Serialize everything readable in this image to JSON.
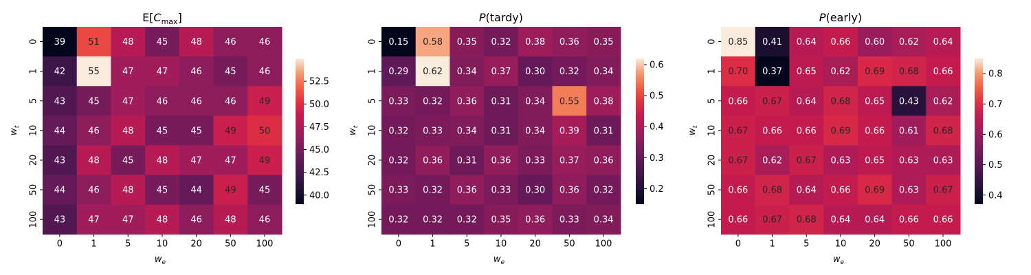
{
  "chart_data": [
    {
      "type": "heatmap",
      "title_main": "E[",
      "title_var": "C",
      "title_sub": "max",
      "title_end": "]",
      "x_categories": [
        "0",
        "1",
        "5",
        "10",
        "20",
        "50",
        "100"
      ],
      "y_categories": [
        "0",
        "1",
        "5",
        "10",
        "20",
        "50",
        "100"
      ],
      "xlabel_var": "w",
      "xlabel_sub": "e",
      "ylabel_var": "w",
      "ylabel_sub": "t",
      "values": [
        [
          39,
          51,
          48,
          45,
          48,
          46,
          46
        ],
        [
          42,
          55,
          47,
          47,
          46,
          45,
          46
        ],
        [
          43,
          45,
          47,
          46,
          46,
          46,
          49
        ],
        [
          44,
          46,
          48,
          45,
          45,
          49,
          50
        ],
        [
          43,
          48,
          45,
          48,
          47,
          47,
          49
        ],
        [
          44,
          46,
          48,
          45,
          44,
          49,
          45
        ],
        [
          43,
          47,
          47,
          48,
          46,
          48,
          46
        ]
      ],
      "colorbar": {
        "range": [
          39,
          55
        ],
        "ticks": [
          40.0,
          42.5,
          45.0,
          47.5,
          50.0,
          52.5
        ],
        "tick_labels": [
          "40.0",
          "42.5",
          "45.0",
          "47.5",
          "50.0",
          "52.5"
        ]
      },
      "colormap": "rocket"
    },
    {
      "type": "heatmap",
      "title_var": "P",
      "title_rest": "(tardy)",
      "x_categories": [
        "0",
        "1",
        "5",
        "10",
        "20",
        "50",
        "100"
      ],
      "y_categories": [
        "0",
        "1",
        "5",
        "10",
        "20",
        "50",
        "100"
      ],
      "xlabel_var": "w",
      "xlabel_sub": "e",
      "ylabel_var": "w",
      "ylabel_sub": "t",
      "values": [
        [
          0.15,
          0.58,
          0.35,
          0.32,
          0.38,
          0.36,
          0.35
        ],
        [
          0.29,
          0.62,
          0.34,
          0.37,
          0.3,
          0.32,
          0.34
        ],
        [
          0.33,
          0.32,
          0.36,
          0.31,
          0.34,
          0.55,
          0.38
        ],
        [
          0.32,
          0.33,
          0.34,
          0.31,
          0.34,
          0.39,
          0.31
        ],
        [
          0.32,
          0.36,
          0.31,
          0.36,
          0.33,
          0.37,
          0.36
        ],
        [
          0.33,
          0.32,
          0.36,
          0.33,
          0.3,
          0.36,
          0.32
        ],
        [
          0.32,
          0.32,
          0.32,
          0.35,
          0.36,
          0.33,
          0.34
        ]
      ],
      "colorbar": {
        "range": [
          0.15,
          0.62
        ],
        "ticks": [
          0.2,
          0.3,
          0.4,
          0.5,
          0.6
        ],
        "tick_labels": [
          "0.2",
          "0.3",
          "0.4",
          "0.5",
          "0.6"
        ]
      },
      "colormap": "rocket"
    },
    {
      "type": "heatmap",
      "title_var": "P",
      "title_rest": "(early)",
      "x_categories": [
        "0",
        "1",
        "5",
        "10",
        "20",
        "50",
        "100"
      ],
      "y_categories": [
        "0",
        "1",
        "5",
        "10",
        "20",
        "50",
        "100"
      ],
      "xlabel_var": "w",
      "xlabel_sub": "e",
      "ylabel_var": "w",
      "ylabel_sub": "t",
      "values": [
        [
          0.85,
          0.41,
          0.64,
          0.66,
          0.6,
          0.62,
          0.64
        ],
        [
          0.7,
          0.37,
          0.65,
          0.62,
          0.69,
          0.68,
          0.66
        ],
        [
          0.66,
          0.67,
          0.64,
          0.68,
          0.65,
          0.43,
          0.62
        ],
        [
          0.67,
          0.66,
          0.66,
          0.69,
          0.66,
          0.61,
          0.68
        ],
        [
          0.67,
          0.62,
          0.67,
          0.63,
          0.65,
          0.63,
          0.63
        ],
        [
          0.66,
          0.68,
          0.64,
          0.66,
          0.69,
          0.63,
          0.67
        ],
        [
          0.66,
          0.67,
          0.68,
          0.64,
          0.64,
          0.66,
          0.66
        ]
      ],
      "colorbar": {
        "range": [
          0.37,
          0.85
        ],
        "ticks": [
          0.4,
          0.5,
          0.6,
          0.7,
          0.8
        ],
        "tick_labels": [
          "0.4",
          "0.5",
          "0.6",
          "0.7",
          "0.8"
        ]
      },
      "colormap": "rocket"
    }
  ]
}
